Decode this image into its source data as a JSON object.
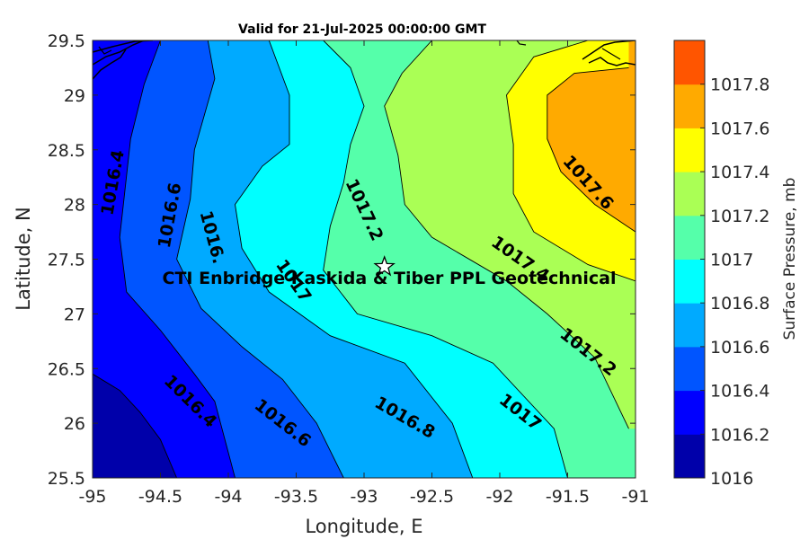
{
  "chart_data": {
    "type": "heatmap",
    "subtype": "filled-contour",
    "title": "Valid for 21-Jul-2025 00:00:00 GMT",
    "xlabel": "Longitude, E",
    "ylabel": "Latitude, N",
    "xlim": [
      -95,
      -91
    ],
    "ylim": [
      25.5,
      29.5
    ],
    "x_ticks": [
      -95,
      -94.5,
      -94,
      -93.5,
      -93,
      -92.5,
      -92,
      -91.5,
      -91
    ],
    "y_ticks": [
      25.5,
      26,
      26.5,
      27,
      27.5,
      28,
      28.5,
      29,
      29.5
    ],
    "colorbar": {
      "label": "Surface Pressure, mb",
      "ticks": [
        "1016",
        "1016.2",
        "1016.4",
        "1016.6",
        "1016.8",
        "1017",
        "1017.2",
        "1017.4",
        "1017.6",
        "1017.8"
      ],
      "colors": [
        "#0000aa",
        "#0000ff",
        "#0055ff",
        "#00aaff",
        "#00ffff",
        "#55ffaa",
        "#aaff55",
        "#ffff00",
        "#ffaa00",
        "#ff5500"
      ]
    },
    "contours": [
      {
        "level": 1016.2,
        "points": [
          [
            -95,
            26.45
          ],
          [
            -94.8,
            26.3
          ],
          [
            -94.65,
            26.1
          ],
          [
            -94.5,
            25.85
          ],
          [
            -94.38,
            25.5
          ]
        ]
      },
      {
        "level": 1016.4,
        "points": [
          [
            -94.5,
            29.5
          ],
          [
            -94.62,
            29.1
          ],
          [
            -94.72,
            28.6
          ],
          [
            -94.8,
            27.7
          ],
          [
            -94.75,
            27.2
          ],
          [
            -94.5,
            26.85
          ],
          [
            -94.25,
            26.45
          ],
          [
            -94.1,
            26.2
          ],
          [
            -93.95,
            25.5
          ]
        ]
      },
      {
        "level": 1016.6,
        "points": [
          [
            -94.15,
            29.5
          ],
          [
            -94.1,
            29.15
          ],
          [
            -94.25,
            28.5
          ],
          [
            -94.28,
            28.05
          ],
          [
            -94.38,
            27.5
          ],
          [
            -94.2,
            27.05
          ],
          [
            -93.9,
            26.7
          ],
          [
            -93.6,
            26.4
          ],
          [
            -93.35,
            26.0
          ],
          [
            -93.15,
            25.5
          ]
        ]
      },
      {
        "level": 1016.8,
        "points": [
          [
            -93.7,
            29.5
          ],
          [
            -93.55,
            29.0
          ],
          [
            -93.55,
            28.55
          ],
          [
            -93.75,
            28.35
          ],
          [
            -93.95,
            28.0
          ],
          [
            -93.9,
            27.6
          ],
          [
            -93.7,
            27.2
          ],
          [
            -93.25,
            26.8
          ],
          [
            -92.7,
            26.55
          ],
          [
            -92.35,
            26.0
          ],
          [
            -92.2,
            25.5
          ]
        ]
      },
      {
        "level": 1017,
        "points": [
          [
            -93.3,
            29.5
          ],
          [
            -93.1,
            29.25
          ],
          [
            -93.0,
            28.9
          ],
          [
            -93.1,
            28.55
          ],
          [
            -93.15,
            28.2
          ],
          [
            -93.25,
            27.8
          ],
          [
            -93.3,
            27.4
          ],
          [
            -93.05,
            27.0
          ],
          [
            -92.5,
            26.8
          ],
          [
            -92.05,
            26.55
          ],
          [
            -91.6,
            25.95
          ],
          [
            -91.5,
            25.5
          ]
        ]
      },
      {
        "level": 1017.2,
        "points": [
          [
            -92.5,
            29.5
          ],
          [
            -92.72,
            29.2
          ],
          [
            -92.85,
            28.9
          ],
          [
            -92.75,
            28.45
          ],
          [
            -92.7,
            28.0
          ],
          [
            -92.5,
            27.7
          ],
          [
            -91.95,
            27.3
          ],
          [
            -91.65,
            27.0
          ],
          [
            -91.3,
            26.6
          ],
          [
            -91.05,
            25.95
          ]
        ]
      },
      {
        "level": 1017.4,
        "points": [
          [
            -91.35,
            29.5
          ],
          [
            -91.75,
            29.35
          ],
          [
            -91.95,
            29.0
          ],
          [
            -91.9,
            28.55
          ],
          [
            -91.9,
            28.1
          ],
          [
            -91.75,
            27.75
          ],
          [
            -91.35,
            27.45
          ],
          [
            -91.0,
            27.3
          ]
        ]
      },
      {
        "level": 1017.6,
        "points": [
          [
            -91.05,
            29.25
          ],
          [
            -91.45,
            29.2
          ],
          [
            -91.65,
            29.0
          ],
          [
            -91.65,
            28.6
          ],
          [
            -91.55,
            28.3
          ],
          [
            -91.3,
            28.0
          ],
          [
            -91.0,
            27.75
          ]
        ]
      }
    ],
    "contour_labels": [
      {
        "text": "1016.4",
        "x": -94.85,
        "y": 28.2,
        "angle": -80
      },
      {
        "text": "1016.6",
        "x": -94.43,
        "y": 27.9,
        "angle": -80
      },
      {
        "text": "1016.",
        "x": -94.12,
        "y": 27.7,
        "angle": 75
      },
      {
        "text": "1017",
        "x": -93.52,
        "y": 27.3,
        "angle": 55
      },
      {
        "text": "1017.2",
        "x": -93.0,
        "y": 27.95,
        "angle": 65
      },
      {
        "text": "1017.6",
        "x": -91.35,
        "y": 28.2,
        "angle": 48
      },
      {
        "text": "1017.4",
        "x": -91.85,
        "y": 27.5,
        "angle": 35
      },
      {
        "text": "1017.2",
        "x": -91.35,
        "y": 26.65,
        "angle": 38
      },
      {
        "text": "1017",
        "x": -91.85,
        "y": 26.1,
        "angle": 38
      },
      {
        "text": "1016.8",
        "x": -92.7,
        "y": 26.05,
        "angle": 30
      },
      {
        "text": "1016.6",
        "x": -93.6,
        "y": 26.0,
        "angle": 38
      },
      {
        "text": "1016.4",
        "x": -94.28,
        "y": 26.2,
        "angle": 45
      }
    ],
    "site": {
      "label": "CTI Enbridge  Kaskida & Tiber PPL Geotechnical",
      "x": -92.85,
      "y": 27.43,
      "marker": "star"
    }
  }
}
